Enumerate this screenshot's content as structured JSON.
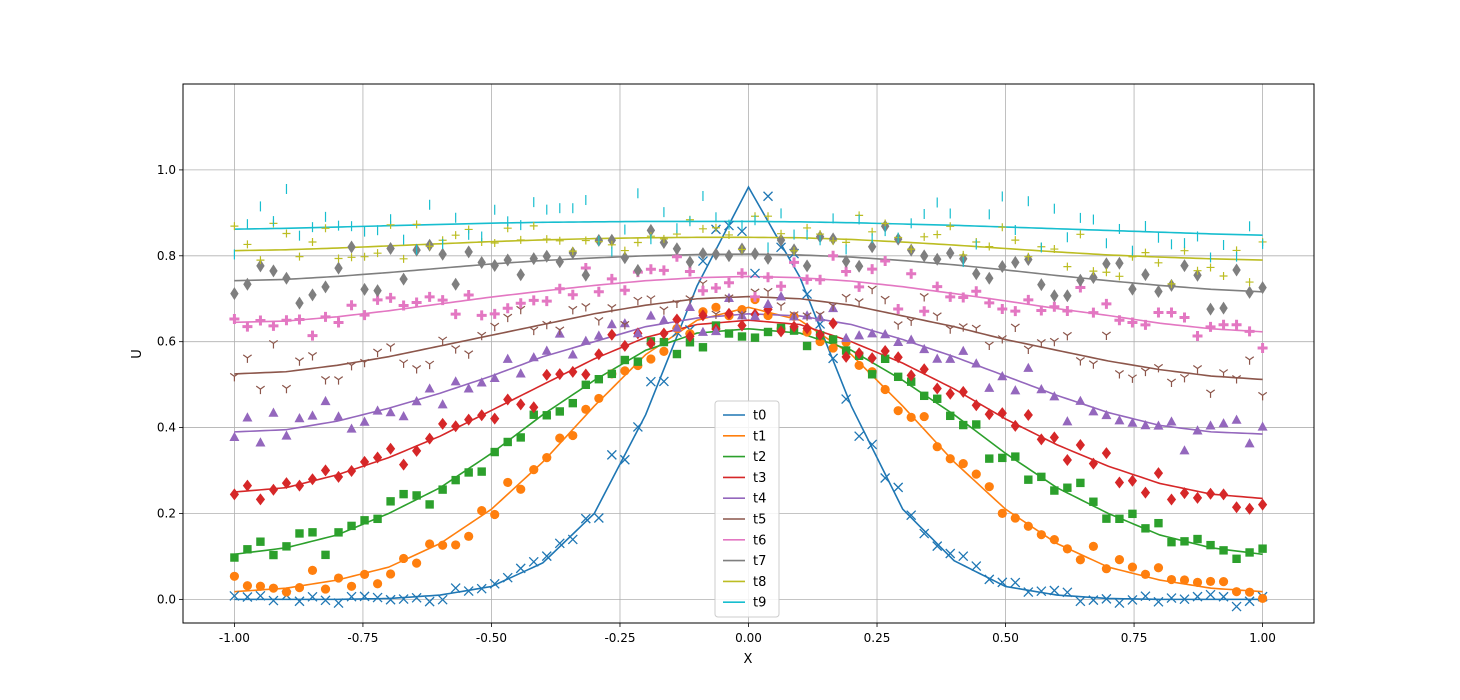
{
  "chart_data": {
    "type": "line",
    "title": "",
    "xlabel": "X",
    "ylabel": "U",
    "xlim": [
      -1.1,
      1.1
    ],
    "ylim": [
      -0.055,
      1.2
    ],
    "grid": true,
    "legend_position": "bottom-center",
    "x_ticks": [
      "-1.00",
      "-0.75",
      "-0.50",
      "-0.25",
      "0.00",
      "0.25",
      "0.50",
      "0.75",
      "1.00"
    ],
    "y_ticks": [
      "0.0",
      "0.2",
      "0.4",
      "0.6",
      "0.8",
      "1.0"
    ],
    "x": [
      -1.0,
      -0.9,
      -0.8,
      -0.7,
      -0.6,
      -0.5,
      -0.4,
      -0.3,
      -0.2,
      -0.1,
      0.0,
      0.1,
      0.2,
      0.3,
      0.4,
      0.5,
      0.6,
      0.7,
      0.8,
      0.9,
      1.0
    ],
    "series": [
      {
        "name": "t0",
        "color": "#1f77b4",
        "marker": "x",
        "values": [
          0.0,
          0.0,
          0.0,
          0.002,
          0.01,
          0.03,
          0.085,
          0.2,
          0.43,
          0.73,
          0.96,
          0.75,
          0.45,
          0.21,
          0.09,
          0.03,
          0.01,
          0.002,
          0.0,
          0.0,
          0.0
        ]
      },
      {
        "name": "t1",
        "color": "#ff7f0e",
        "marker": "circle",
        "values": [
          0.018,
          0.026,
          0.045,
          0.075,
          0.13,
          0.21,
          0.32,
          0.45,
          0.57,
          0.65,
          0.68,
          0.65,
          0.57,
          0.45,
          0.32,
          0.21,
          0.13,
          0.075,
          0.045,
          0.026,
          0.018
        ]
      },
      {
        "name": "t2",
        "color": "#2ca02c",
        "marker": "square",
        "values": [
          0.105,
          0.12,
          0.15,
          0.2,
          0.26,
          0.34,
          0.43,
          0.51,
          0.58,
          0.62,
          0.63,
          0.62,
          0.58,
          0.51,
          0.43,
          0.34,
          0.26,
          0.2,
          0.15,
          0.12,
          0.105
        ]
      },
      {
        "name": "t3",
        "color": "#d62728",
        "marker": "diamond",
        "values": [
          0.25,
          0.26,
          0.29,
          0.33,
          0.38,
          0.44,
          0.5,
          0.56,
          0.61,
          0.64,
          0.65,
          0.64,
          0.6,
          0.55,
          0.49,
          0.42,
          0.36,
          0.31,
          0.27,
          0.245,
          0.235
        ]
      },
      {
        "name": "t4",
        "color": "#9467bd",
        "marker": "triangle",
        "values": [
          0.39,
          0.395,
          0.415,
          0.445,
          0.48,
          0.52,
          0.565,
          0.6,
          0.635,
          0.655,
          0.665,
          0.66,
          0.64,
          0.605,
          0.565,
          0.52,
          0.475,
          0.435,
          0.405,
          0.39,
          0.385
        ]
      },
      {
        "name": "t5",
        "color": "#8c564b",
        "marker": "tri_down",
        "values": [
          0.525,
          0.53,
          0.545,
          0.565,
          0.59,
          0.615,
          0.64,
          0.665,
          0.685,
          0.7,
          0.705,
          0.7,
          0.685,
          0.66,
          0.635,
          0.605,
          0.58,
          0.555,
          0.535,
          0.52,
          0.512
        ]
      },
      {
        "name": "t6",
        "color": "#e377c2",
        "marker": "plus_bold",
        "values": [
          0.645,
          0.648,
          0.658,
          0.672,
          0.688,
          0.704,
          0.718,
          0.731,
          0.742,
          0.749,
          0.752,
          0.749,
          0.741,
          0.728,
          0.712,
          0.695,
          0.677,
          0.661,
          0.643,
          0.63,
          0.623
        ]
      },
      {
        "name": "t7",
        "color": "#7f7f7f",
        "marker": "thin_diamond",
        "values": [
          0.742,
          0.745,
          0.752,
          0.761,
          0.771,
          0.781,
          0.789,
          0.795,
          0.8,
          0.803,
          0.804,
          0.802,
          0.797,
          0.789,
          0.779,
          0.767,
          0.754,
          0.742,
          0.731,
          0.722,
          0.716
        ]
      },
      {
        "name": "t8",
        "color": "#bcbd22",
        "marker": "plus",
        "values": [
          0.812,
          0.814,
          0.818,
          0.823,
          0.828,
          0.833,
          0.837,
          0.84,
          0.842,
          0.843,
          0.843,
          0.842,
          0.838,
          0.832,
          0.825,
          0.817,
          0.809,
          0.802,
          0.797,
          0.793,
          0.79
        ]
      },
      {
        "name": "t9",
        "color": "#17becf",
        "marker": "vline",
        "values": [
          0.862,
          0.864,
          0.867,
          0.87,
          0.873,
          0.876,
          0.878,
          0.879,
          0.88,
          0.88,
          0.88,
          0.879,
          0.877,
          0.874,
          0.871,
          0.867,
          0.863,
          0.859,
          0.855,
          0.851,
          0.848
        ]
      }
    ]
  }
}
